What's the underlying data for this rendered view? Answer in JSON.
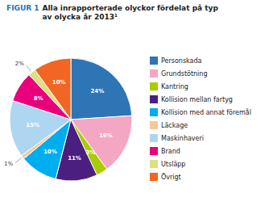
{
  "chart_data": {
    "type": "pie",
    "title": "FIGUR 1",
    "subtitle": "Alla inrapporterade olyckor fördelat på typ\nav olycka år 2013¹",
    "categories": [
      "Personskada",
      "Grundstötning",
      "Kantring",
      "Kollision mellan fartyg",
      "Kollision med annat föremål",
      "Läckage",
      "Maskinhaveri",
      "Brand",
      "Utsläpp",
      "Övrigt"
    ],
    "values": [
      24,
      16,
      3,
      11,
      10,
      1,
      15,
      8,
      2,
      10
    ],
    "value_labels": [
      "24%",
      "16%",
      "3%",
      "11%",
      "10%",
      "1%",
      "15%",
      "8%",
      "2%",
      "10%"
    ],
    "colors": [
      "#2E75B6",
      "#F4A7C3",
      "#AACC00",
      "#4B1F80",
      "#00AEEF",
      "#F5C89A",
      "#AED6F1",
      "#E9007C",
      "#DDDF80",
      "#F26522"
    ],
    "data_labels": true,
    "legend": "right"
  }
}
